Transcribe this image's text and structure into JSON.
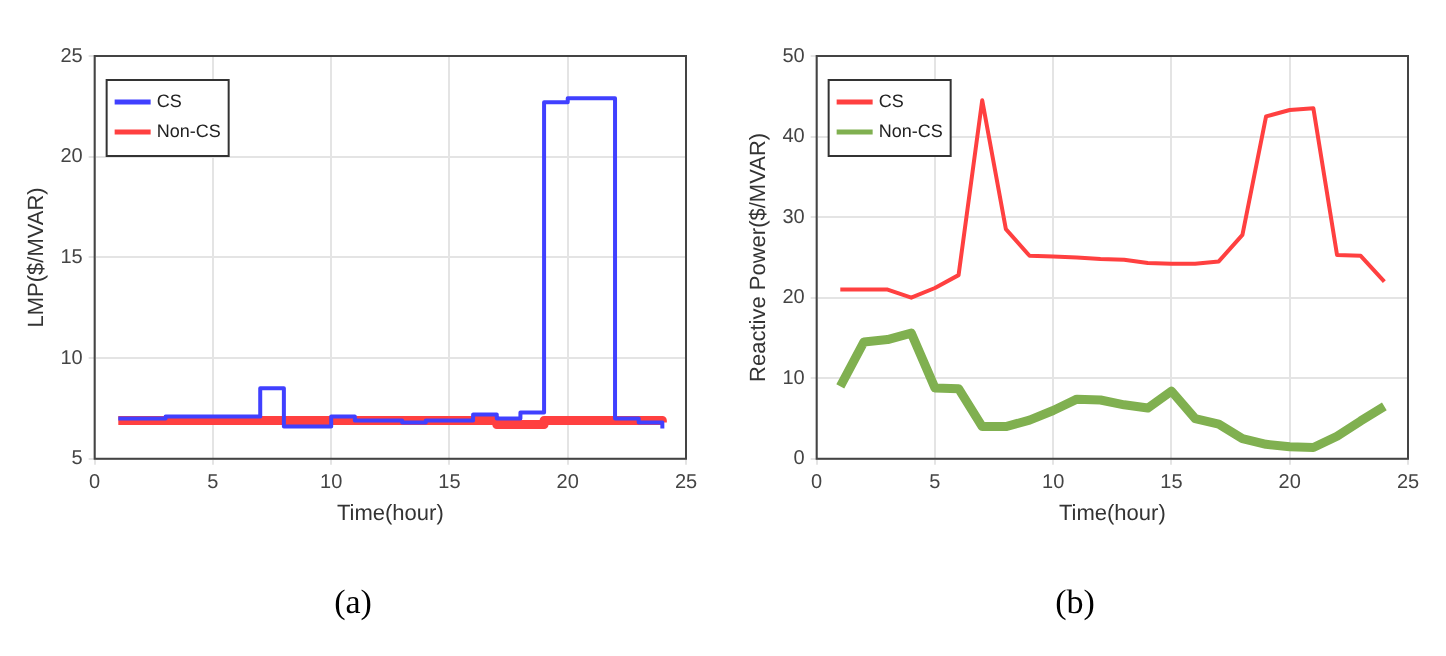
{
  "chart_data": [
    {
      "type": "step",
      "title": "(a)",
      "xlabel": "Time(hour)",
      "ylabel": "LMP($/MVAR)",
      "x": [
        1,
        2,
        3,
        4,
        5,
        6,
        7,
        8,
        9,
        10,
        11,
        12,
        13,
        14,
        15,
        16,
        17,
        18,
        19,
        20,
        21,
        22,
        23,
        24
      ],
      "series": [
        {
          "name": "CS",
          "color": "#4040ff",
          "values": [
            7.0,
            7.0,
            7.1,
            7.1,
            7.1,
            7.1,
            8.5,
            6.6,
            6.6,
            7.1,
            6.9,
            6.9,
            6.8,
            6.9,
            6.9,
            7.2,
            7.0,
            7.3,
            22.7,
            22.9,
            22.9,
            7.0,
            6.8,
            6.5
          ]
        },
        {
          "name": "Non-CS",
          "color": "#ff4040",
          "values": [
            6.9,
            6.9,
            6.9,
            6.9,
            6.9,
            6.9,
            6.9,
            6.9,
            6.9,
            6.9,
            6.9,
            6.9,
            6.9,
            6.9,
            6.9,
            6.9,
            6.7,
            6.7,
            6.9,
            6.9,
            6.9,
            6.9,
            6.9,
            6.8
          ]
        }
      ],
      "xlim": [
        0,
        25
      ],
      "xticks": [
        0,
        5,
        10,
        15,
        20,
        25
      ],
      "ylim": [
        5,
        25
      ],
      "yticks": [
        5,
        10,
        15,
        20,
        25
      ],
      "grid": true,
      "legend": "top left"
    },
    {
      "type": "line",
      "title": "(b)",
      "xlabel": "Time(hour)",
      "ylabel": "Reactive Power($/MVAR)",
      "x": [
        1,
        2,
        3,
        4,
        5,
        6,
        7,
        8,
        9,
        10,
        11,
        12,
        13,
        14,
        15,
        16,
        17,
        18,
        19,
        20,
        21,
        22,
        23,
        24
      ],
      "series": [
        {
          "name": "CS",
          "color": "#ff4040",
          "values": [
            21,
            21,
            21,
            20,
            21.2,
            22.8,
            44.5,
            28.5,
            25.2,
            25.1,
            25,
            24.8,
            24.7,
            24.3,
            24.2,
            24.2,
            24.5,
            27.8,
            42.5,
            43.3,
            43.5,
            25.3,
            25.2,
            22
          ]
        },
        {
          "name": "Non-CS",
          "color": "#80b050",
          "values": [
            9,
            14.5,
            14.8,
            15.6,
            8.8,
            8.7,
            4,
            4,
            4.8,
            6,
            7.4,
            7.3,
            6.7,
            6.3,
            8.4,
            5,
            4.3,
            2.5,
            1.8,
            1.5,
            1.4,
            2.8,
            4.7,
            6.5
          ]
        }
      ],
      "xlim": [
        0,
        25
      ],
      "xticks": [
        0,
        5,
        10,
        15,
        20,
        25
      ],
      "ylim": [
        0,
        50
      ],
      "yticks": [
        0,
        10,
        20,
        30,
        40,
        50
      ],
      "grid": true,
      "legend": "top left"
    }
  ]
}
